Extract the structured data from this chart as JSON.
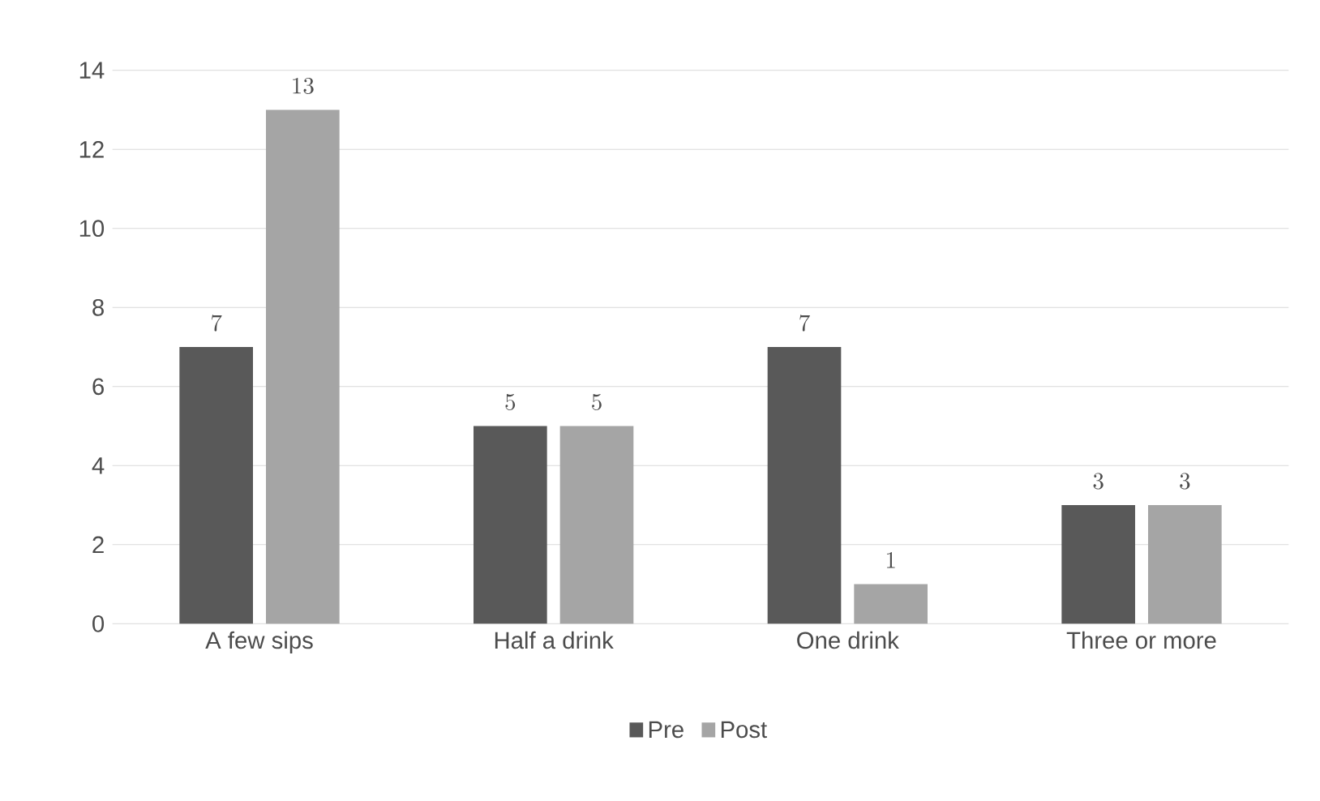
{
  "chart_data": {
    "type": "bar",
    "categories": [
      "A few sips",
      "Half a drink",
      "One drink",
      "Three or more"
    ],
    "series": [
      {
        "name": "Pre",
        "color": "#595959",
        "values": [
          7,
          5,
          7,
          3
        ]
      },
      {
        "name": "Post",
        "color": "#a5a5a5",
        "values": [
          13,
          5,
          1,
          3
        ]
      }
    ],
    "ylim": [
      0,
      14
    ],
    "yticks": [
      0,
      2,
      4,
      6,
      8,
      10,
      12,
      14
    ],
    "grid": "y",
    "legend": "bottom",
    "data_labels": true
  }
}
